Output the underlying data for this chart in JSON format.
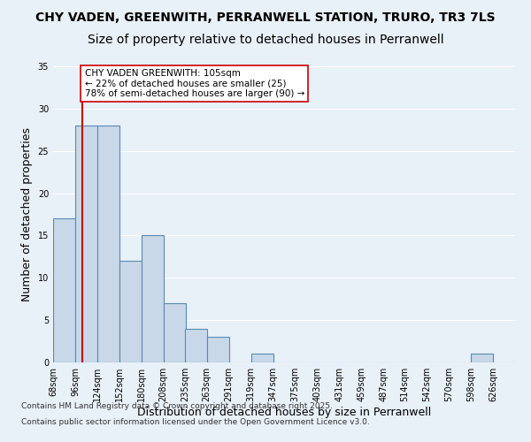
{
  "title1": "CHY VADEN, GREENWITH, PERRANWELL STATION, TRURO, TR3 7LS",
  "title2": "Size of property relative to detached houses in Perranwell",
  "xlabel": "Distribution of detached houses by size in Perranwell",
  "ylabel": "Number of detached properties",
  "bin_labels": [
    "68sqm",
    "96sqm",
    "124sqm",
    "152sqm",
    "180sqm",
    "208sqm",
    "235sqm",
    "263sqm",
    "291sqm",
    "319sqm",
    "347sqm",
    "375sqm",
    "403sqm",
    "431sqm",
    "459sqm",
    "487sqm",
    "514sqm",
    "542sqm",
    "570sqm",
    "598sqm",
    "626sqm"
  ],
  "bin_starts": [
    68,
    96,
    124,
    152,
    180,
    208,
    235,
    263,
    291,
    319,
    347,
    375,
    403,
    431,
    459,
    487,
    514,
    542,
    570,
    598,
    626
  ],
  "bin_width": 28,
  "values": [
    17,
    28,
    28,
    12,
    15,
    7,
    4,
    3,
    0,
    1,
    0,
    0,
    0,
    0,
    0,
    0,
    0,
    0,
    0,
    1,
    0
  ],
  "bar_facecolor": "#c8d8e8",
  "bar_edgecolor": "#5a8ab0",
  "property_size": 105,
  "property_line_color": "#cc0000",
  "annotation_text": "CHY VADEN GREENWITH: 105sqm\n← 22% of detached houses are smaller (25)\n78% of semi-detached houses are larger (90) →",
  "annotation_box_color": "#ffffff",
  "annotation_box_edgecolor": "#cc0000",
  "ylim": [
    0,
    35
  ],
  "yticks": [
    0,
    5,
    10,
    15,
    20,
    25,
    30,
    35
  ],
  "background_color": "#e8f0f8",
  "plot_background_color": "#e8f0f8",
  "grid_color": "#ffffff",
  "footnote1": "Contains HM Land Registry data © Crown copyright and database right 2025.",
  "footnote2": "Contains public sector information licensed under the Open Government Licence v3.0.",
  "title1_fontsize": 10,
  "title2_fontsize": 10,
  "xlabel_fontsize": 9,
  "ylabel_fontsize": 9,
  "tick_fontsize": 7,
  "annotation_fontsize": 7.5,
  "footnote_fontsize": 6.5
}
